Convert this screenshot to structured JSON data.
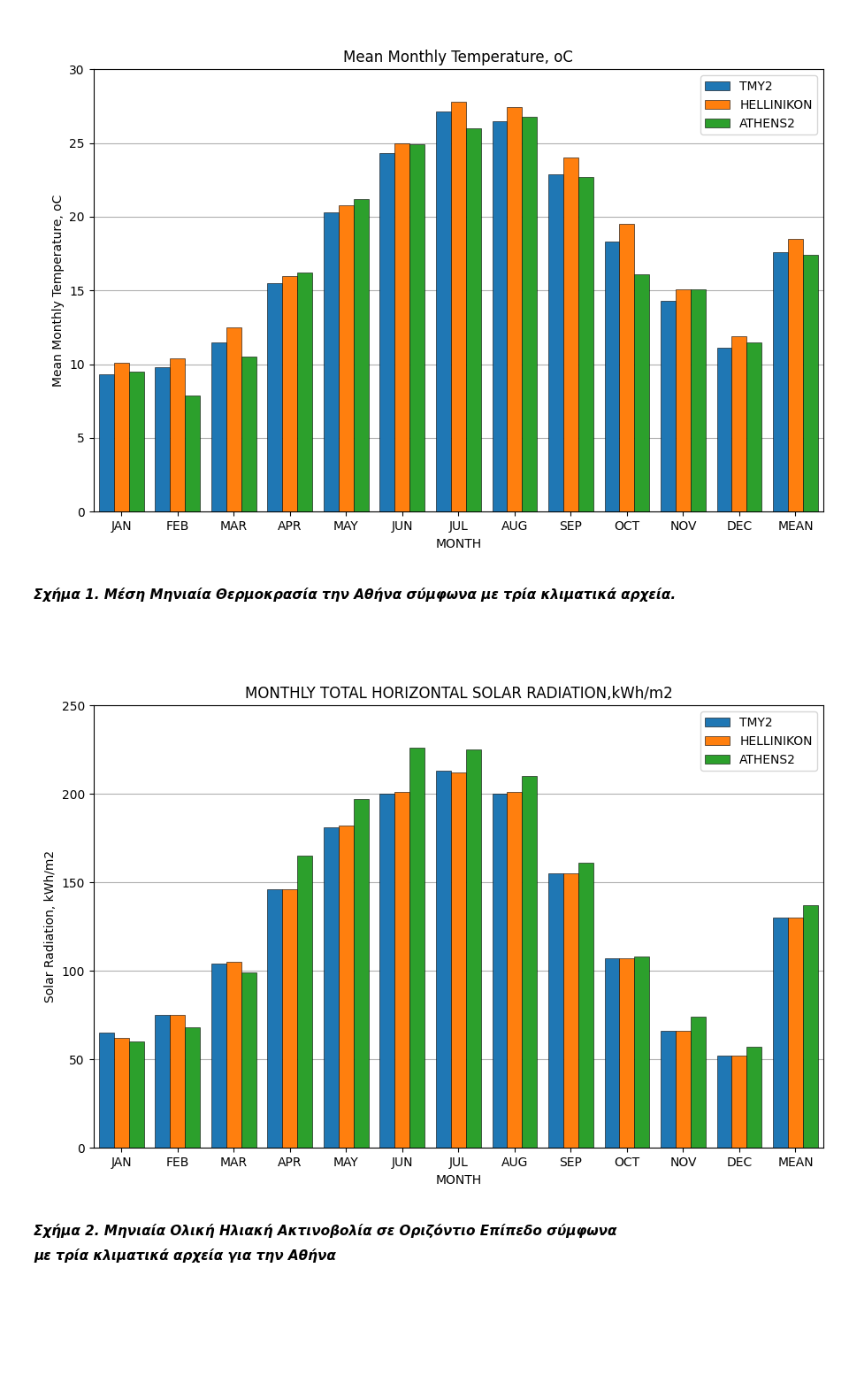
{
  "chart_data": [
    {
      "type": "bar",
      "title": "Mean Monthly Temperature, oC",
      "xlabel": "MONTH",
      "ylabel": "Mean Monthly Temperature, oC",
      "categories": [
        "JAN",
        "FEB",
        "MAR",
        "APR",
        "MAY",
        "JUN",
        "JUL",
        "AUG",
        "SEP",
        "OCT",
        "NOV",
        "DEC",
        "MEAN"
      ],
      "series": [
        {
          "name": "TMY2",
          "values": [
            9.3,
            9.8,
            11.5,
            15.5,
            20.3,
            24.3,
            27.1,
            26.5,
            22.9,
            18.3,
            14.3,
            11.1,
            17.6
          ]
        },
        {
          "name": "HELLINIKON",
          "values": [
            10.1,
            10.4,
            12.5,
            16.0,
            20.8,
            25.0,
            27.8,
            27.4,
            24.0,
            19.5,
            15.1,
            11.9,
            18.5
          ]
        },
        {
          "name": "ATHENS2",
          "values": [
            9.5,
            7.9,
            10.5,
            16.2,
            21.2,
            24.9,
            26.0,
            26.8,
            22.7,
            16.1,
            15.1,
            11.5,
            17.4
          ]
        }
      ],
      "ylim": [
        0,
        30
      ],
      "yticks": [
        0,
        5,
        10,
        15,
        20,
        25,
        30
      ],
      "grid": true,
      "legend": "upper right",
      "annotations": [
        "Σχήμα 1. Μέση Μηνιαία Θερμοκρασία την Αθήνα σύμφωνα με τρία κλιματικά αρχεία."
      ]
    },
    {
      "type": "bar",
      "title": "MONTHLY TOTAL HORIZONTAL SOLAR RADIATION,kWh/m2",
      "xlabel": "MONTH",
      "ylabel": "Solar Radiation, kWh/m2",
      "categories": [
        "JAN",
        "FEB",
        "MAR",
        "APR",
        "MAY",
        "JUN",
        "JUL",
        "AUG",
        "SEP",
        "OCT",
        "NOV",
        "DEC",
        "MEAN"
      ],
      "series": [
        {
          "name": "TMY2",
          "values": [
            65,
            75,
            104,
            146,
            181,
            200,
            213,
            200,
            155,
            107,
            66,
            52,
            130
          ]
        },
        {
          "name": "HELLINIKON",
          "values": [
            62,
            75,
            105,
            146,
            182,
            201,
            212,
            201,
            155,
            107,
            66,
            52,
            130
          ]
        },
        {
          "name": "ATHENS2",
          "values": [
            60,
            68,
            99,
            165,
            197,
            226,
            225,
            210,
            161,
            108,
            74,
            57,
            137
          ]
        }
      ],
      "ylim": [
        0,
        250
      ],
      "yticks": [
        0,
        50,
        100,
        150,
        200,
        250
      ],
      "grid": true,
      "legend": "upper right",
      "annotations": [
        "Σχήμα 2. Μηνιαία Ολική Ηλιακή Ακτινοβολία σε Οριζόντιο Επίπεδο σύμφωνα",
        "με τρία κλιματικά αρχεία για την Αθήνα"
      ]
    }
  ]
}
